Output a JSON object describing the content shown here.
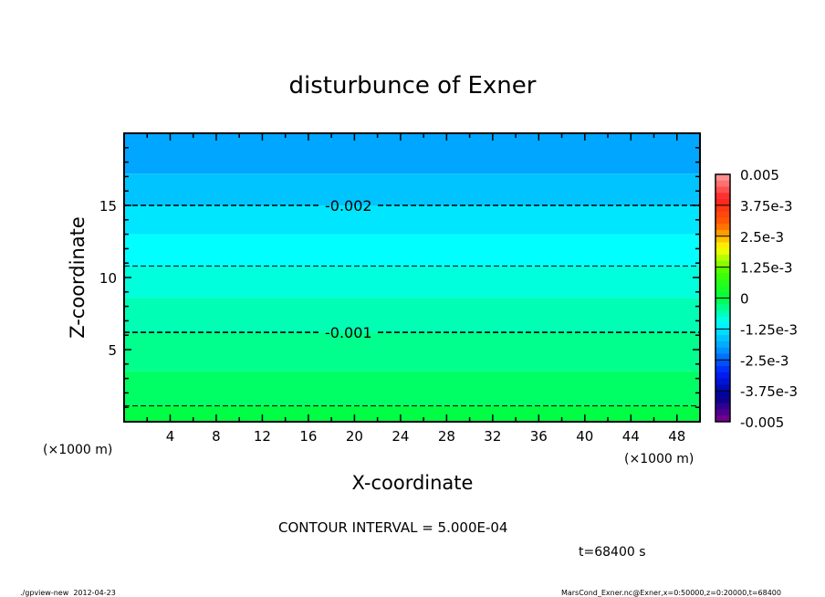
{
  "chart_data": {
    "type": "heatmap",
    "title": "disturbunce of Exner",
    "xlabel": "X-coordinate",
    "ylabel": "Z-coordinate",
    "x_unit": "(×1000 m)",
    "y_unit": "(×1000 m)",
    "xlim": [
      0,
      50
    ],
    "ylim": [
      0,
      20
    ],
    "x_ticks": [
      4,
      8,
      12,
      16,
      20,
      24,
      28,
      32,
      36,
      40,
      44,
      48
    ],
    "y_ticks": [
      5,
      10,
      15
    ],
    "fill_bands": [
      {
        "z_from": 0,
        "z_to": 1.1,
        "color": "#00FF44"
      },
      {
        "z_from": 1.1,
        "z_to": 3.5,
        "color": "#00FF64"
      },
      {
        "z_from": 3.5,
        "z_to": 6.2,
        "color": "#00FF8C"
      },
      {
        "z_from": 6.2,
        "z_to": 8.6,
        "color": "#00FFB4"
      },
      {
        "z_from": 8.6,
        "z_to": 10.8,
        "color": "#00FFDC"
      },
      {
        "z_from": 10.8,
        "z_to": 13.0,
        "color": "#00FFFF"
      },
      {
        "z_from": 13.0,
        "z_to": 15.0,
        "color": "#00E6FF"
      },
      {
        "z_from": 15.0,
        "z_to": 17.2,
        "color": "#00C4FF"
      },
      {
        "z_from": 17.2,
        "z_to": 20,
        "color": "#00A6FF"
      }
    ],
    "contours": [
      {
        "z": 1.1,
        "value": -0.0005,
        "label": ""
      },
      {
        "z": 6.2,
        "value": -0.001,
        "label": "-0.001"
      },
      {
        "z": 10.8,
        "value": -0.0015,
        "label": ""
      },
      {
        "z": 15.0,
        "value": -0.002,
        "label": "-0.002"
      }
    ],
    "colorbar": {
      "range": [
        -0.005,
        0.005
      ],
      "tick_labels": [
        "0.005",
        "3.75e-3",
        "2.5e-3",
        "1.25e-3",
        "0",
        "-1.25e-3",
        "-2.5e-3",
        "-3.75e-3",
        "-0.005"
      ],
      "color_stops_top_to_bottom": [
        "#FFA0A0",
        "#FF2020",
        "#FF6000",
        "#FFFF00",
        "#40FF00",
        "#00FF40",
        "#00FFFF",
        "#00A0FF",
        "#0020FF",
        "#000090",
        "#800090"
      ]
    },
    "contour_interval_text": "CONTOUR INTERVAL = 5.000E-04",
    "time_text": "t=68400 s",
    "footer_left": "./gpview-new  2012-04-23",
    "footer_right": "MarsCond_Exner.nc@Exner,x=0:50000,z=0:20000,t=68400"
  }
}
